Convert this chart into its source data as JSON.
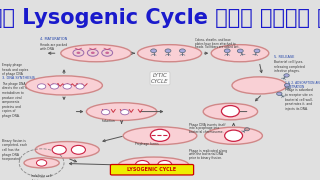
{
  "title": "सीखे Lysogenic Cycle सरल भाषा में",
  "title_color": "#1a1acc",
  "title_bg": "#e0e0e0",
  "title_fontsize": 15,
  "diag_bg": "#f0f0f0",
  "cell_fill": "#f9d0d5",
  "cell_border": "#d08888",
  "cell_lw": 1.0,
  "phage_head_color": "#aaaadd",
  "phage_tail_color": "#556677",
  "dna_ring_color": "#cc2244",
  "dna_ring_fill": "#ffffff",
  "lytic_text": "LYTIC\nCYCLE",
  "lysogenic_box_fill": "#eeee00",
  "lysogenic_box_edge": "#cc0000",
  "lysogenic_text": "LYSOGENIC CYCLE",
  "lysogenic_text_color": "#cc0000",
  "label_color_blue": "#2244aa",
  "label_color_dark": "#333333",
  "arrow_color": "#555555",
  "note_fontsize": 2.2,
  "label_fontsize": 2.5
}
